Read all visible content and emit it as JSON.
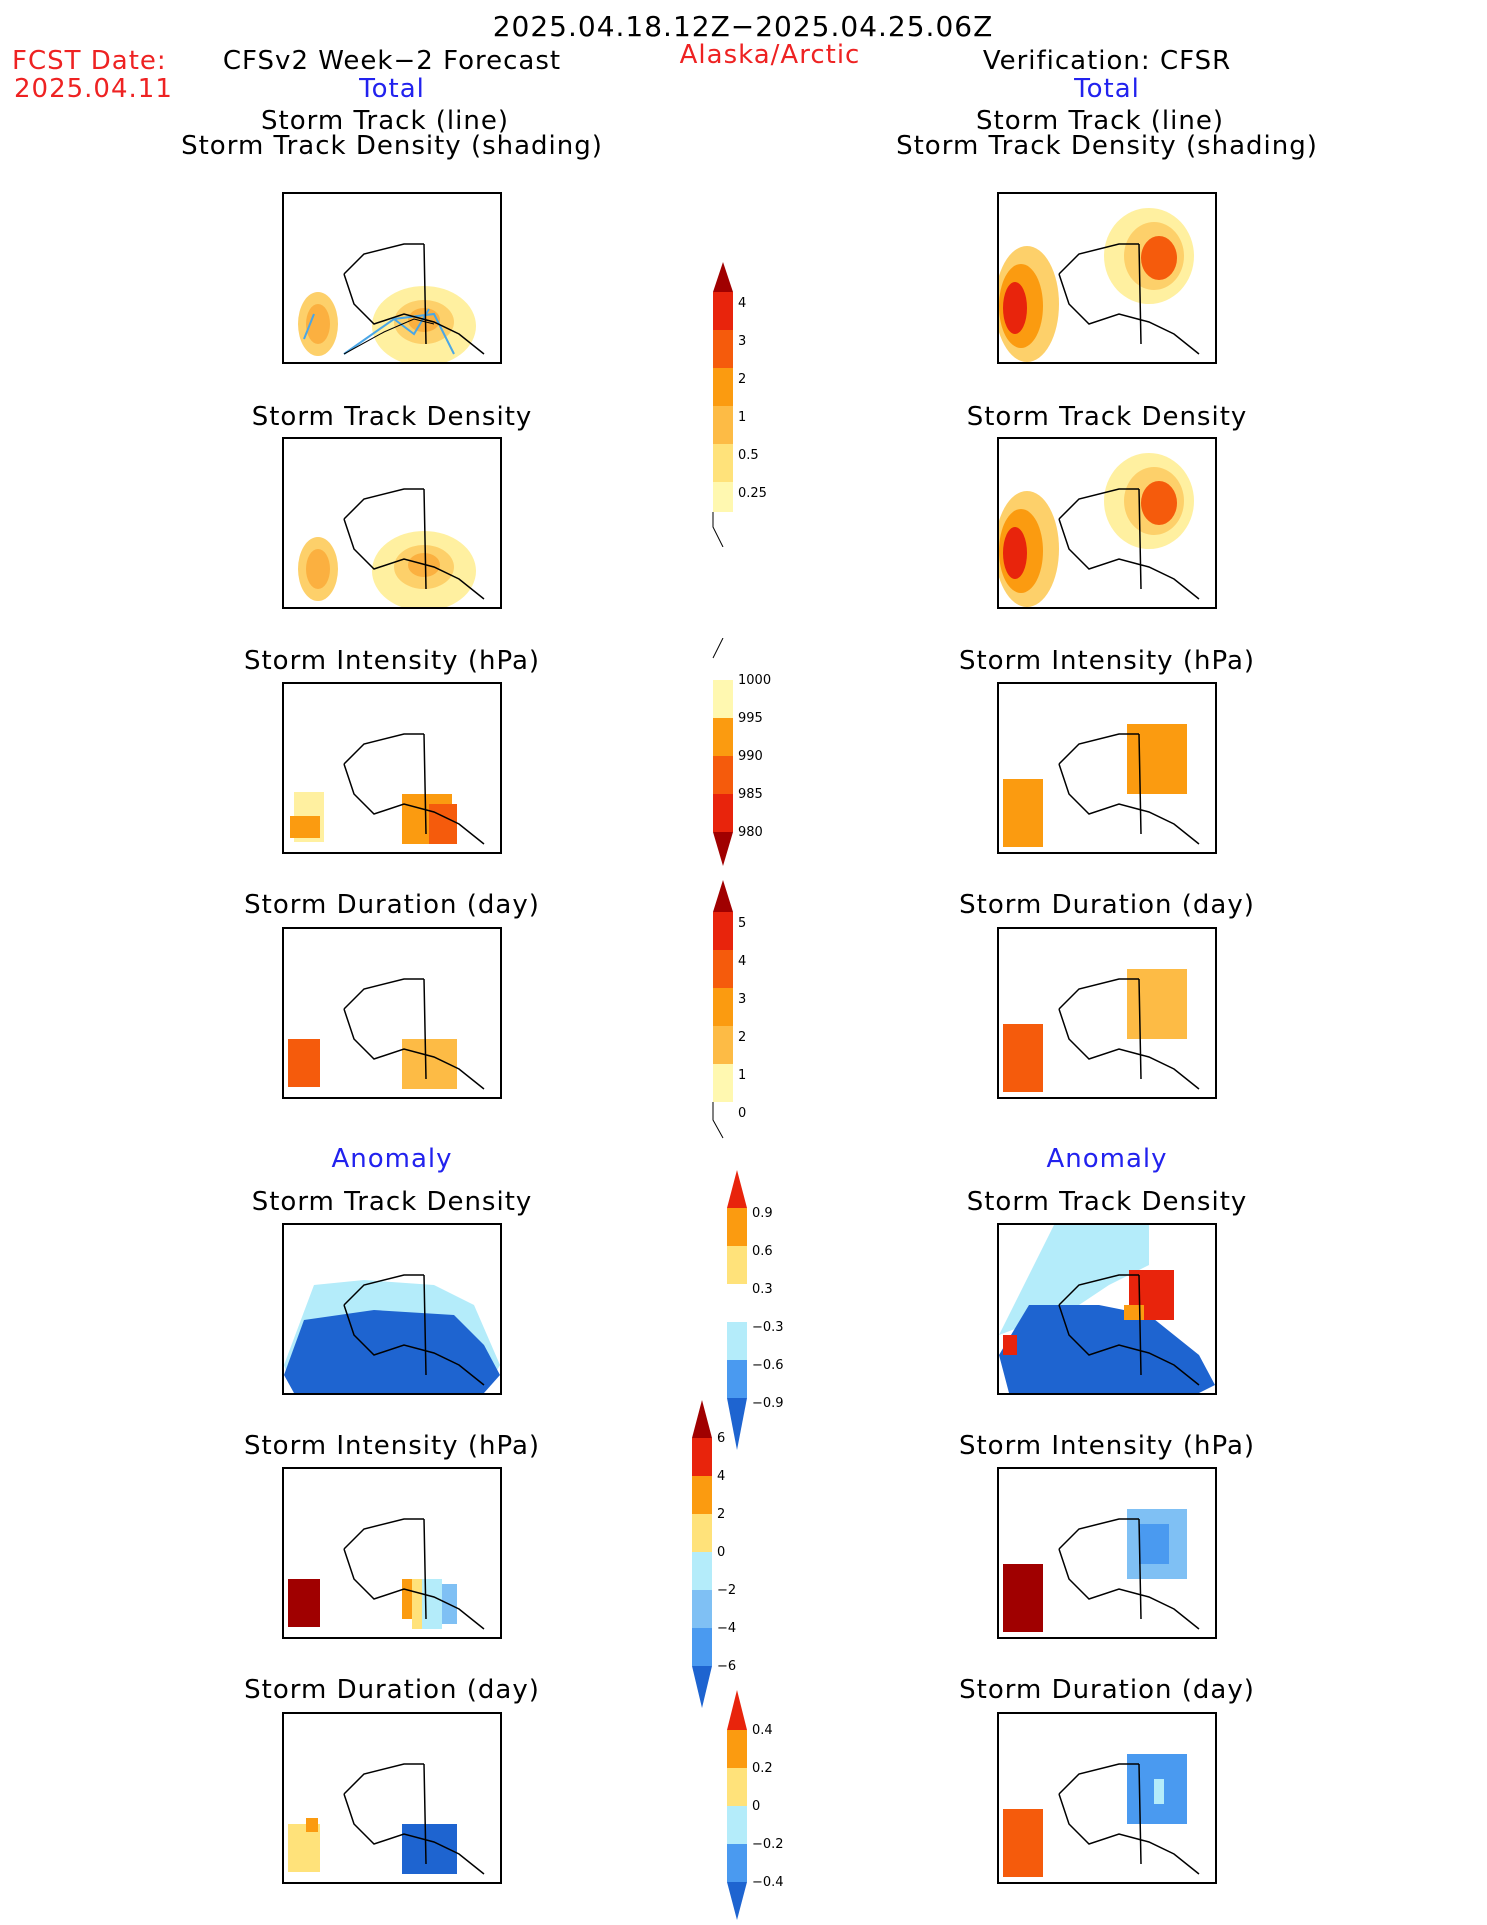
{
  "header": {
    "date_range": "2025.04.18.12Z−2025.04.25.06Z",
    "fcst_label": "FCST Date:",
    "fcst_value": "2025.04.11",
    "left_title": "CFSv2 Week−2 Forecast",
    "region": "Alaska/Arctic",
    "right_title": "Verification: CFSR",
    "left_sub": "Total",
    "right_sub": "Total"
  },
  "sections": {
    "total": {
      "track_title_1": "Storm Track (line)",
      "track_title_2": "Storm Track Density (shading)",
      "density_title": "Storm Track Density",
      "intensity_title": "Storm Intensity (hPa)",
      "duration_title": "Storm Duration (day)"
    },
    "anomaly": {
      "label": "Anomaly",
      "density_title": "Storm Track Density",
      "intensity_title": "Storm Intensity (hPa)",
      "duration_title": "Storm Duration (day)"
    }
  },
  "colorbars": {
    "density_total": [
      "4",
      "3",
      "2",
      "1",
      "0.5",
      "0.25"
    ],
    "intensity_total": [
      "1000",
      "995",
      "990",
      "985",
      "980"
    ],
    "duration_total": [
      "5",
      "4",
      "3",
      "2",
      "1",
      "0"
    ],
    "density_anom": [
      "0.9",
      "0.6",
      "0.3",
      "−0.3",
      "−0.6",
      "−0.9"
    ],
    "intensity_anom": [
      "6",
      "4",
      "2",
      "0",
      "−2",
      "−4",
      "−6"
    ],
    "duration_anom": [
      "0.4",
      "0.2",
      "0",
      "−0.2",
      "−0.4"
    ]
  },
  "colors": {
    "yellow_light": "#fff8b0",
    "yellow": "#ffe27a",
    "orange_light": "#fdbb45",
    "orange": "#fb9b10",
    "orange_red": "#f55b0c",
    "red": "#e8240c",
    "dark_red": "#a00000",
    "blue_light": "#b4ecfa",
    "blue_mid": "#7fc0f4",
    "blue": "#4a9af0",
    "blue_dark": "#1e64d0"
  }
}
